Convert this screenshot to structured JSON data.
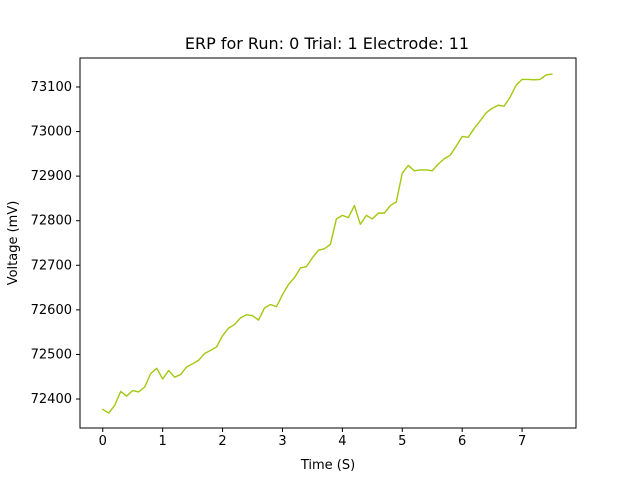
{
  "chart_data": {
    "type": "line",
    "title": "ERP for Run: 0 Trial: 1 Electrode: 11",
    "xlabel": "Time (S)",
    "ylabel": "Voltage (mV)",
    "xlim": [
      -0.38,
      7.9
    ],
    "ylim": [
      73335,
      73165
    ],
    "xticks": [
      0,
      1,
      2,
      3,
      4,
      5,
      6,
      7
    ],
    "xtick_labels": [
      "0",
      "1",
      "2",
      "3",
      "4",
      "5",
      "6",
      "7"
    ],
    "yticks": [
      72400,
      72500,
      72600,
      72700,
      72800,
      72900,
      73000,
      73100
    ],
    "ytick_labels": [
      "72400",
      "72500",
      "72600",
      "72700",
      "72800",
      "72900",
      "73000",
      "73100"
    ],
    "grid": false,
    "legend": "none",
    "series": [
      {
        "color": "#a2c80f",
        "x": [
          0.0,
          0.1,
          0.2,
          0.3,
          0.4,
          0.5,
          0.6,
          0.7,
          0.8,
          0.9,
          1.0,
          1.1,
          1.2,
          1.3,
          1.4,
          1.5,
          1.6,
          1.7,
          1.8,
          1.9,
          2.0,
          2.1,
          2.2,
          2.3,
          2.4,
          2.5,
          2.6,
          2.7,
          2.8,
          2.9,
          3.0,
          3.1,
          3.2,
          3.3,
          3.4,
          3.5,
          3.6,
          3.7,
          3.8,
          3.9,
          4.0,
          4.1,
          4.2,
          4.3,
          4.4,
          4.5,
          4.6,
          4.7,
          4.8,
          4.9,
          5.0,
          5.1,
          5.2,
          5.3,
          5.4,
          5.5,
          5.6,
          5.7,
          5.8,
          5.9,
          6.0,
          6.1,
          6.2,
          6.3,
          6.4,
          6.5,
          6.6,
          6.7,
          6.8,
          6.9,
          7.0,
          7.1,
          7.2,
          7.3,
          7.4,
          7.5
        ],
        "y": [
          72375,
          72370,
          72385,
          72415,
          72408,
          72418,
          72412,
          72430,
          72455,
          72465,
          72448,
          72462,
          72445,
          72458,
          72470,
          72475,
          72490,
          72500,
          72505,
          72520,
          72540,
          72555,
          72570,
          72580,
          72585,
          72590,
          72575,
          72600,
          72615,
          72605,
          72630,
          72660,
          72670,
          72690,
          72700,
          72715,
          72730,
          72740,
          72745,
          72800,
          72815,
          72805,
          72830,
          72795,
          72810,
          72800,
          72820,
          72815,
          72830,
          72845,
          72905,
          72920,
          72915,
          72912,
          72910,
          72915,
          72925,
          72935,
          72950,
          72965,
          72985,
          72990,
          73005,
          73020,
          73045,
          73050,
          73055,
          73060,
          73075,
          73100,
          73120,
          73115,
          73112,
          73120,
          73125,
          73125
        ]
      }
    ]
  }
}
